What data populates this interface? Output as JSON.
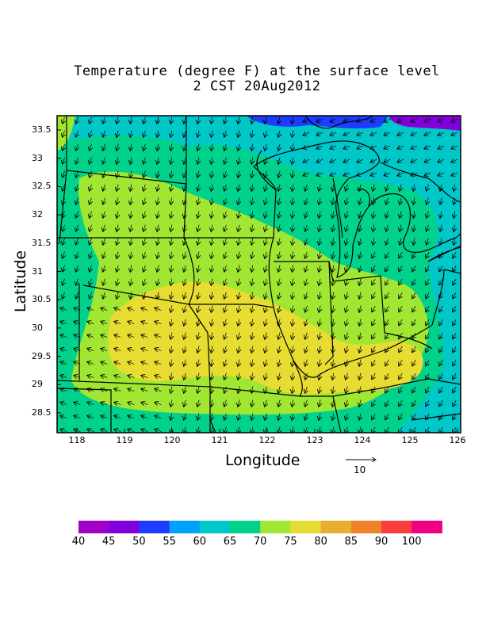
{
  "title": "Temperature (degree F) at the surface level",
  "subtitle": "2 CST 20Aug2012",
  "xlabel": "Longitude",
  "ylabel": "Latitude",
  "x_ticks": [
    "118",
    "119",
    "120",
    "121",
    "122",
    "123",
    "124",
    "125",
    "126"
  ],
  "y_ticks": [
    "33.5",
    "33",
    "32.5",
    "32",
    "31.5",
    "31",
    "30.5",
    "30",
    "29.5",
    "29",
    "28.5"
  ],
  "reference_vector": {
    "value": "10"
  },
  "colorbar": {
    "labels": [
      "40",
      "45",
      "50",
      "55",
      "60",
      "65",
      "70",
      "75",
      "80",
      "85",
      "90",
      "100"
    ],
    "colors": [
      "#a000c8",
      "#8200dc",
      "#1e3cff",
      "#00a0ff",
      "#00c8c8",
      "#00d28c",
      "#a0e632",
      "#e6dc32",
      "#e6af2d",
      "#f08228",
      "#fa3c3c",
      "#f00082"
    ]
  },
  "colors": {
    "c55": "#1e3cff",
    "c60": "#00c8c8",
    "c65": "#00d28c",
    "c70": "#a0e632",
    "c75": "#e6dc32",
    "purple": "#8200dc"
  }
}
